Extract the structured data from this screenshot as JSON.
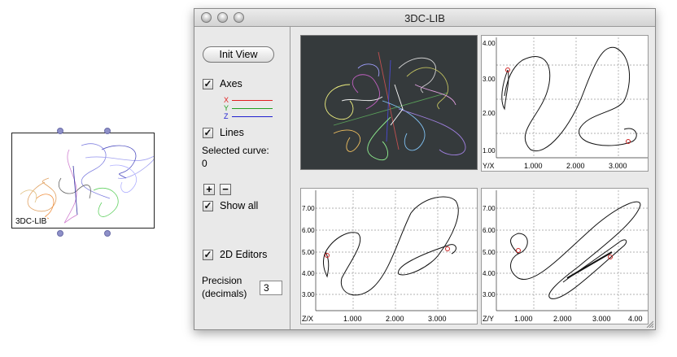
{
  "thumbnail": {
    "label": "3DC-LIB"
  },
  "window": {
    "title": "3DC-LIB"
  },
  "sidebar": {
    "init_view": "Init View",
    "axes": {
      "label": "Axes",
      "checked": true
    },
    "axis_keys": [
      {
        "label": "X",
        "color": "#e02020"
      },
      {
        "label": "Y",
        "color": "#20a020"
      },
      {
        "label": "Z",
        "color": "#2020d0"
      }
    ],
    "lines": {
      "label": "Lines",
      "checked": true
    },
    "selected_curve_label": "Selected curve:",
    "selected_curve_value": "0",
    "plus": "+",
    "minus": "−",
    "show_all": {
      "label": "Show all",
      "checked": true
    },
    "editors_2d": {
      "label": "2D Editors",
      "checked": true
    },
    "precision_label_1": "Precision",
    "precision_label_2": "(decimals)",
    "precision_value": "3"
  },
  "panels": {
    "yx": {
      "corner": "Y/X",
      "y_ticks": [
        "4.00",
        "3.00",
        "2.00",
        "1.00"
      ],
      "x_ticks": [
        "1.000",
        "2.000",
        "3.000"
      ]
    },
    "zx": {
      "corner": "Z/X",
      "y_ticks": [
        "7.00",
        "6.00",
        "5.00",
        "4.00",
        "3.00"
      ],
      "x_ticks": [
        "1.000",
        "2.000",
        "3.000"
      ]
    },
    "zy": {
      "corner": "Z/Y",
      "y_ticks": [
        "7.00",
        "6.00",
        "5.00",
        "4.00",
        "3.00"
      ],
      "x_ticks": [
        "1.000",
        "2.000",
        "3.000",
        "4.00"
      ]
    }
  },
  "colors": {
    "marker": "#cc2222",
    "curve": "#111111",
    "panel3d_bg": "#353a3c"
  }
}
